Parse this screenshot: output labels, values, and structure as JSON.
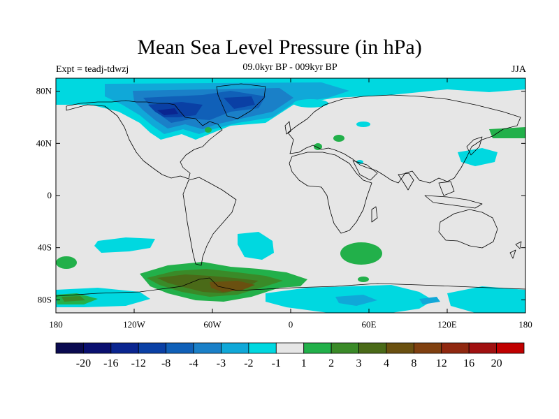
{
  "title": "Mean Sea Level Pressure (in hPa)",
  "subtitle": "09.0kyr BP - 009kyr BP",
  "experiment": "Expt = teadj-tdwzj",
  "season": "JJA",
  "map": {
    "projection": "cylindrical-equidistant",
    "lon_range": [
      -180,
      180
    ],
    "lat_range": [
      -90,
      90
    ],
    "background_color": "#e6e6e6",
    "coastline_color": "#000000",
    "x_ticks": [
      {
        "lon": -180,
        "label": "180"
      },
      {
        "lon": -120,
        "label": "120W"
      },
      {
        "lon": -60,
        "label": "60W"
      },
      {
        "lon": 0,
        "label": "0"
      },
      {
        "lon": 60,
        "label": "60E"
      },
      {
        "lon": 120,
        "label": "120E"
      },
      {
        "lon": 180,
        "label": "180"
      }
    ],
    "y_ticks": [
      {
        "lat": 80,
        "label": "80N"
      },
      {
        "lat": 40,
        "label": "40N"
      },
      {
        "lat": 0,
        "label": "0"
      },
      {
        "lat": -40,
        "label": "40S"
      },
      {
        "lat": -80,
        "label": "80S"
      }
    ]
  },
  "colorbar": {
    "colors": [
      "#0a0a50",
      "#0a1070",
      "#0a2590",
      "#0a40a5",
      "#1060b8",
      "#1a80c8",
      "#10a8d8",
      "#00d8e0",
      "#e6e6e6",
      "#22b04a",
      "#3a8a28",
      "#4a6a18",
      "#6a5010",
      "#804010",
      "#902810",
      "#a01010",
      "#c00000"
    ],
    "labels": [
      "-20",
      "-16",
      "-12",
      "-8",
      "-4",
      "-3",
      "-2",
      "-1",
      "1",
      "2",
      "3",
      "4",
      "8",
      "12",
      "16",
      "20"
    ]
  }
}
